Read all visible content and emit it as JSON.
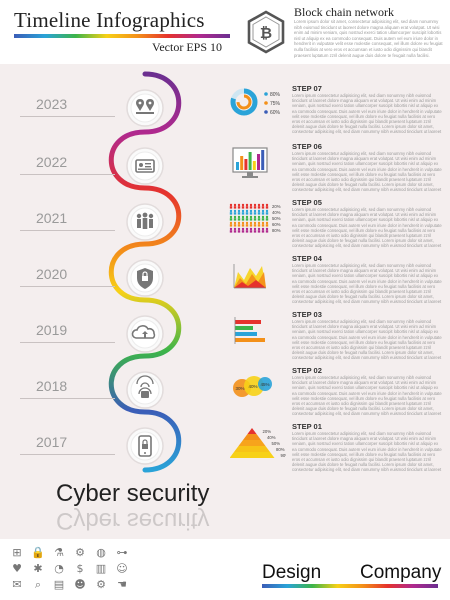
{
  "header": {
    "title": "Timeline Infographics",
    "vector_label": "Vector",
    "eps_label": "EPS 10",
    "logo_symbol": "₿",
    "logo_icon": "bitcoin-hexagon-icon",
    "block_title": "Block chain network",
    "block_text": "Lorem ipsum dolor sit amet, consectetur adipisicing elit, sed diam nonummy nibh euismod tincidunt ut laoreet dolore magna aliquam erat volutpat. Ut wisi enim ad minim veniam, quis nostrud exerci tation ullamcorper suscipit lobortis nisl ut aliquip ex ea commodo consequat. Duis autem vel eum iriure dolor in hendrerit in vulputate velit esse molestie consequat, vel illum dolore eu feugiat nulla facilisis at vero eros et accumsan et iusto odio dignissim qui blandit praesent luptatum zzril delenit augue duis dolore te feugait nulla facilisi."
  },
  "timeline": [
    {
      "year": "2023",
      "icon": "location-pins-icon",
      "color": "#b0298e",
      "step": "STEP 07",
      "chart": "donut-chart",
      "labels": [
        "80%",
        "75%",
        "60%"
      ]
    },
    {
      "year": "2022",
      "icon": "id-card-icon",
      "color": "#b0298e",
      "step": "STEP 06",
      "chart": "monitor-chart",
      "labels": []
    },
    {
      "year": "2021",
      "icon": "people-group-icon",
      "color": "#e5322d",
      "step": "STEP 05",
      "chart": "people-chart",
      "labels": [
        "20%",
        "40%",
        "50%",
        "60%",
        "80%"
      ]
    },
    {
      "year": "2020",
      "icon": "shield-icon",
      "color": "#f39019",
      "step": "STEP 04",
      "chart": "area-chart",
      "labels": []
    },
    {
      "year": "2019",
      "icon": "cloud-upload-icon",
      "color": "#3cb44a",
      "step": "STEP 03",
      "chart": "bar-chart",
      "labels": []
    },
    {
      "year": "2018",
      "icon": "fingerprint-icon",
      "color": "#2aa3d8",
      "step": "STEP 02",
      "chart": "circles-chart",
      "labels": [
        "30%",
        "40%",
        "45%"
      ]
    },
    {
      "year": "2017",
      "icon": "phone-lock-icon",
      "color": "#3b5db7",
      "step": "STEP 01",
      "chart": "pyramid-chart",
      "labels": [
        "20%",
        "40%",
        "50%",
        "80%",
        "90%"
      ]
    }
  ],
  "step_text": "Lorem ipsum consectetur adipisicing elit, sed diam nonummy nibh euismod tincidunt ut laoreet dolore magna aliquam erat volutpat. Ut wisi enim ad minim veniam, quis nostrud exerci tation ullamcorper suscipit lobortis nisl ut aliquip ex ea commodo consequat. Duis autem vel eum iriure dolor in hendrerit in vulputate velit esse molestie consequat, vel illum dolore eu feugiat nulla facilisis at vero eros et accumsan et iusto odio dignissim qui blandit praesent luptatum zzril delenit augue duis dolore te feugait nulla facilisi. Lorem ipsum dolor sit amet, consectetur adipisicing elit, sed diam nonummy nibh euismod tincidunt ut laoreet dolore.",
  "footer": {
    "main_title": "Cyber security",
    "design_label": "Design",
    "company_label": "Company",
    "mini_icons": [
      "flowchart-icon",
      "lock-icon",
      "lab-icon",
      "gear-icon",
      "globe-icon",
      "network-icon",
      "heart-icon",
      "bug-icon",
      "pie-icon",
      "money-icon",
      "bar-chart-icon",
      "users-icon",
      "mail-icon",
      "magnifier-icon",
      "document-icon",
      "crowd-icon",
      "settings-icon",
      "hand-icon"
    ]
  },
  "colors": {
    "panel_bg": "#f4eeee",
    "rainbow": [
      "#3b5db7",
      "#2aa3d8",
      "#3cb44a",
      "#f7d117",
      "#f39019",
      "#e5322d",
      "#b0298e",
      "#6b2f90"
    ]
  }
}
